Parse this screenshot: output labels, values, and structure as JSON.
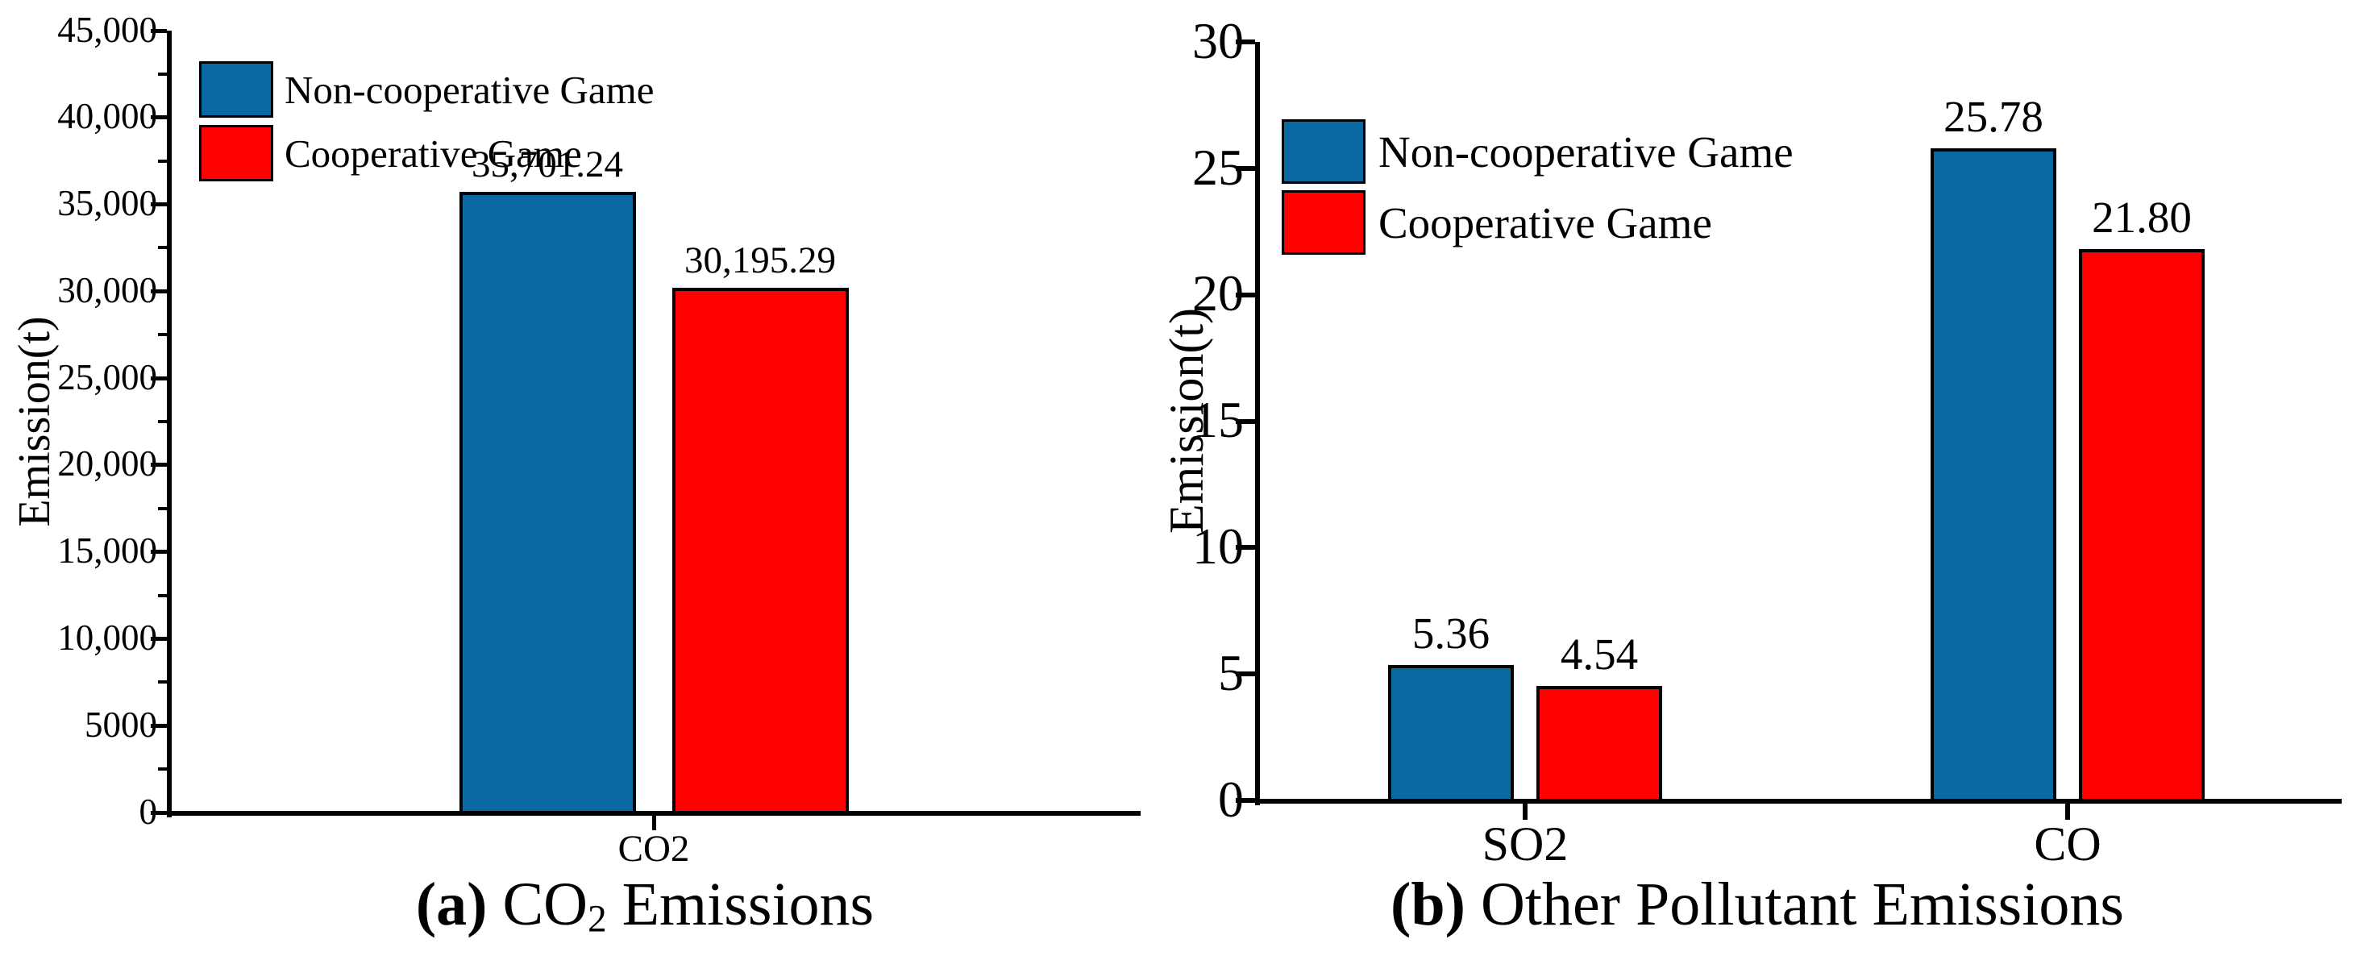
{
  "figure_title": "",
  "captions": {
    "a": {
      "label": "(a)",
      "pre": " CO",
      "sub": "2",
      "post": " Emissions"
    },
    "b": {
      "label": "(b)",
      "pre": " Other Pollutant Emissions",
      "sub": "",
      "post": ""
    }
  },
  "colors": {
    "non_cooperative": "#0A69A2",
    "cooperative": "#FF0000",
    "axis": "#000000"
  },
  "chart_data": [
    {
      "id": "a",
      "type": "bar",
      "title": "(a) CO2 Emissions",
      "ylabel": "Emission(t)",
      "xlabel": "",
      "ylim": [
        0,
        45000
      ],
      "ytick_major_step": 5000,
      "ytick_minor_step": 2500,
      "grid": false,
      "legend_position": "top-left-inside",
      "ytick_labels": [
        "45,000",
        "40,000",
        "35,000",
        "30,000",
        "25,000",
        "20,000",
        "15,000",
        "10,000",
        "5000",
        "0"
      ],
      "categories": [
        "CO2"
      ],
      "series": [
        {
          "name": "Non-cooperative Game",
          "color": "#0A69A2",
          "values": [
            35701.24
          ],
          "value_labels": [
            "35,701.24"
          ]
        },
        {
          "name": "Cooperative Game",
          "color": "#FF0000",
          "values": [
            30195.29
          ],
          "value_labels": [
            "30,195.29"
          ]
        }
      ]
    },
    {
      "id": "b",
      "type": "bar",
      "title": "(b) Other Pollutant Emissions",
      "ylabel": "Emission(t)",
      "xlabel": "",
      "ylim": [
        0,
        30
      ],
      "ytick_major_step": 5,
      "ytick_minor_step": null,
      "grid": false,
      "legend_position": "top-left-inside",
      "ytick_labels": [
        "30",
        "25",
        "20",
        "15",
        "10",
        "5",
        "0"
      ],
      "categories": [
        "SO2",
        "CO"
      ],
      "series": [
        {
          "name": "Non-cooperative Game",
          "color": "#0A69A2",
          "values": [
            5.36,
            25.78
          ],
          "value_labels": [
            "5.36",
            "25.78"
          ]
        },
        {
          "name": "Cooperative Game",
          "color": "#FF0000",
          "values": [
            4.54,
            21.8
          ],
          "value_labels": [
            "4.54",
            "21.80"
          ]
        }
      ]
    }
  ]
}
